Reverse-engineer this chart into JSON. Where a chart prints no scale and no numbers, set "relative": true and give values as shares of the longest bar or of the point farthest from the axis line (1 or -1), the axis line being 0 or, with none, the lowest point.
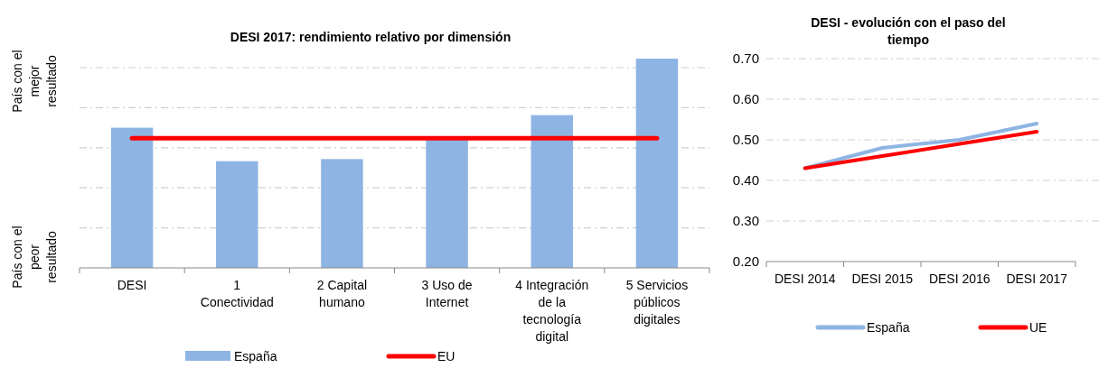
{
  "chart_data": [
    {
      "type": "bar",
      "title": "DESI 2017: rendimiento relativo por dimensión",
      "relative": true,
      "categories": [
        "DESI",
        "1 Conectividad",
        "2 Capital humano",
        "3 Uso de Internet",
        "4 Integración de la tecnología digital",
        "5 Servicios públicos digitales"
      ],
      "series": [
        {
          "name": "España",
          "type": "bar",
          "color": "#8eb4e3",
          "values": [
            0.67,
            0.51,
            0.52,
            0.62,
            0.73,
            1
          ]
        },
        {
          "name": "EU",
          "type": "line",
          "color": "#ff0000",
          "values": [
            0.62,
            0.62,
            0.62,
            0.62,
            0.62,
            0.62
          ]
        }
      ],
      "annotations": [
        "País con el mejor resultado",
        "País con el peor resultado"
      ],
      "grid": true,
      "legend": "bottom"
    },
    {
      "type": "line",
      "title": "DESI - evolución con el paso del tiempo",
      "categories": [
        "DESI 2014",
        "DESI 2015",
        "DESI 2016",
        "DESI 2017"
      ],
      "series": [
        {
          "name": "España",
          "color": "#8eb4e3",
          "values": [
            0.43,
            0.48,
            0.5,
            0.54
          ]
        },
        {
          "name": "UE",
          "color": "#ff0000",
          "values": [
            0.43,
            0.46,
            0.49,
            0.52
          ]
        }
      ],
      "ylim": [
        0.2,
        0.7
      ],
      "yticks": [
        {
          "value": 0.2,
          "label": "0.20"
        },
        {
          "value": 0.3,
          "label": "0.30"
        },
        {
          "value": 0.4,
          "label": "0.40"
        },
        {
          "value": 0.5,
          "label": "0.50"
        },
        {
          "value": 0.6,
          "label": "0.60"
        },
        {
          "value": 0.7,
          "label": "0.70"
        }
      ],
      "grid": true,
      "legend": "bottom"
    }
  ]
}
